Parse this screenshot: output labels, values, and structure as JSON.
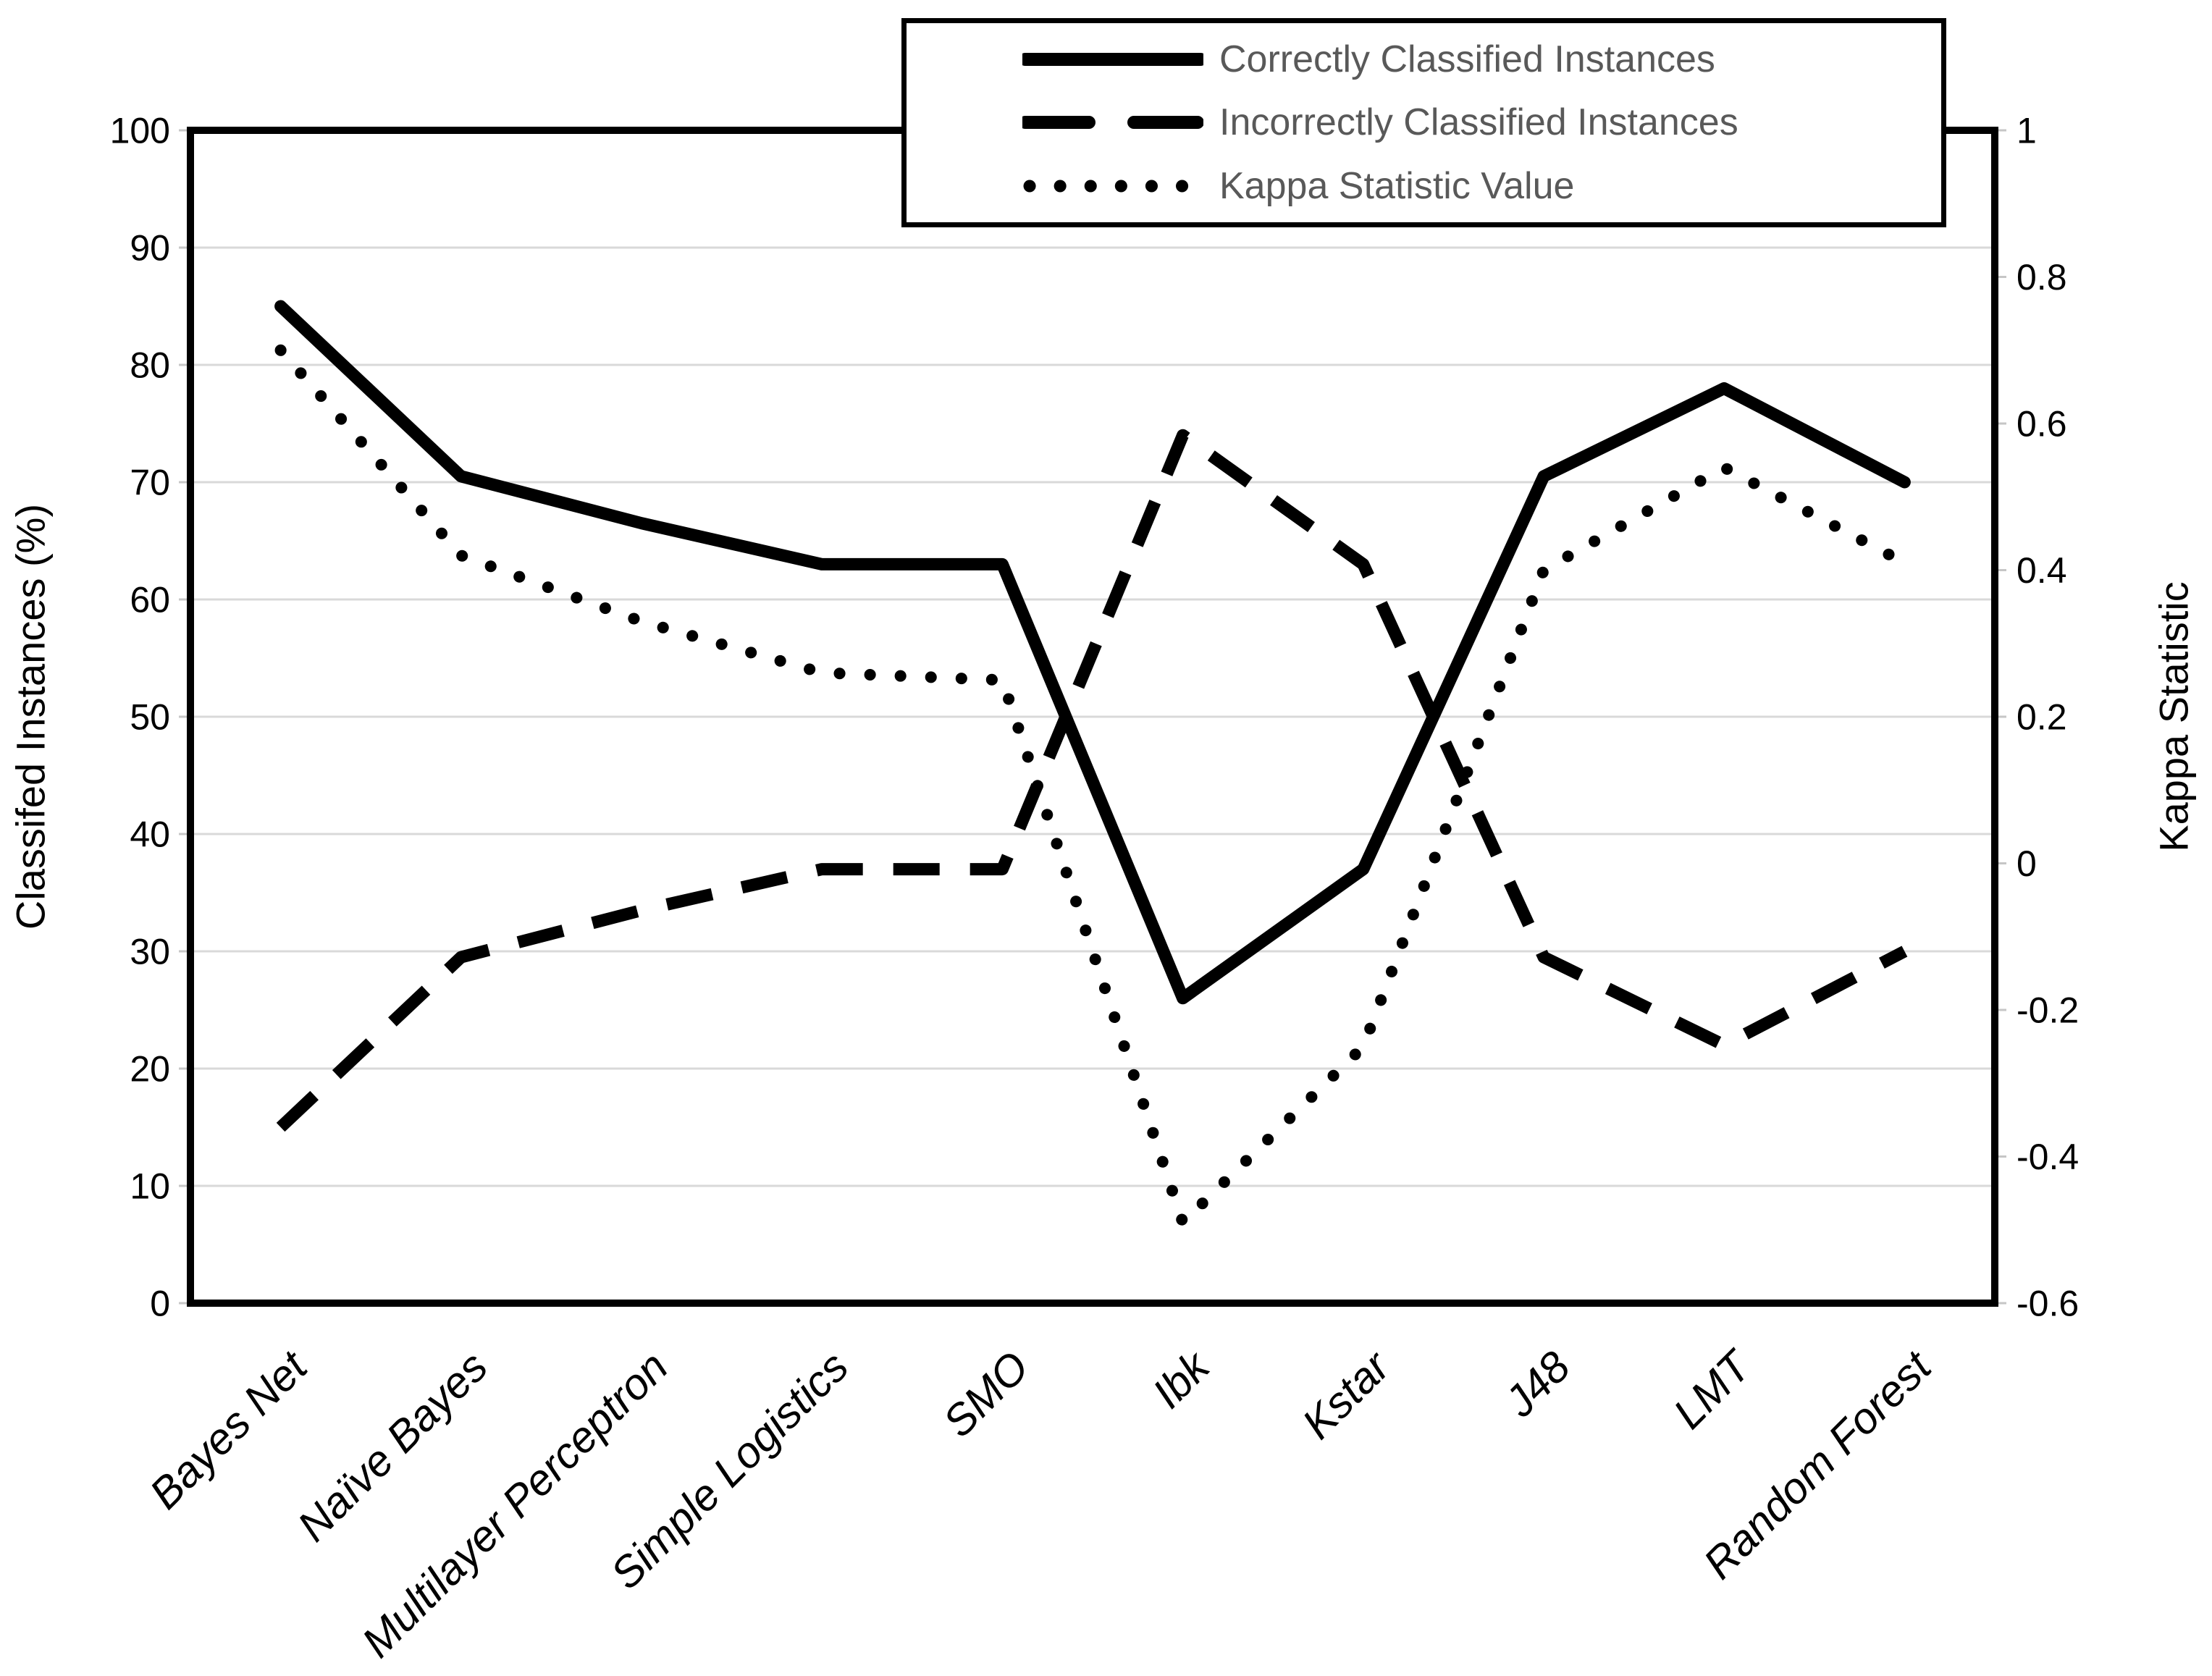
{
  "chart_data": {
    "type": "line",
    "title": "",
    "categories": [
      "Bayes Net",
      "Naïve Bayes",
      "Multilayer Perceptron",
      "Simple Logistics",
      "SMO",
      "Ibk",
      "Kstar",
      "J48",
      "LMT",
      "Random Forest"
    ],
    "series": [
      {
        "name": "Correctly Classified Instances",
        "axis": "left",
        "style": "solid",
        "values": [
          85,
          70.5,
          66.5,
          63,
          63,
          26,
          37,
          70.5,
          78,
          70
        ]
      },
      {
        "name": "Incorrectly Classified Instances",
        "axis": "left",
        "style": "dashed",
        "values": [
          15,
          29.5,
          33.5,
          37,
          37,
          74,
          63,
          29.5,
          22,
          30
        ]
      },
      {
        "name": "Kappa Statistic Value",
        "axis": "right",
        "style": "dotted",
        "values": [
          0.7,
          0.42,
          0.33,
          0.26,
          0.25,
          -0.49,
          -0.25,
          0.4,
          0.54,
          0.41
        ]
      }
    ],
    "left_axis": {
      "label": "Classifed Instances (%)",
      "min": 0,
      "max": 100,
      "step": 10,
      "tick_labels": [
        "0",
        "10",
        "20",
        "30",
        "40",
        "50",
        "60",
        "70",
        "80",
        "90",
        "100"
      ]
    },
    "right_axis": {
      "label": "Kappa Statistic",
      "min": -0.6,
      "max": 1,
      "step": 0.2,
      "tick_labels": [
        "-0.6",
        "-0.4",
        "-0.2",
        "0",
        "0.2",
        "0.4",
        "0.6",
        "0.8",
        "1"
      ]
    },
    "legend_position": "top-right",
    "grid": "horizontal",
    "colors": {
      "line": "#000000",
      "grid": "#d9d9d9",
      "plot_border": "#000000",
      "axis_text": "#000000",
      "legend_text": "#595959",
      "background": "#ffffff"
    }
  }
}
